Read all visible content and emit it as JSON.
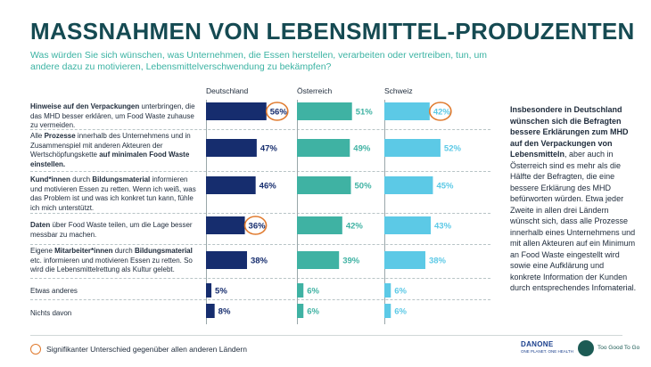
{
  "header": {
    "title": "MASSNAHMEN VON LEBENSMITTEL-PRODUZENTEN",
    "subtitle": "Was würden Sie sich wünschen, was Unternehmen, die Essen herstellen, verarbeiten oder vertreiben, tun, um andere dazu zu motivieren, Lebensmittelverschwendung zu bekämpfen?"
  },
  "colors": {
    "deutschland": "#162d6e",
    "oesterreich": "#3fb2a3",
    "schweiz": "#5cc9e6",
    "highlight_ring": "#e07a2e",
    "title": "#154a52"
  },
  "rows": [
    {
      "segments": [
        {
          "text": "Hinweise auf den Verpackungen",
          "bold": true
        },
        {
          "text": " unterbringen, die das MHD besser erklären, um Food Waste zuhause zu vermeiden.",
          "bold": false
        }
      ]
    },
    {
      "segments": [
        {
          "text": "Alle ",
          "bold": false
        },
        {
          "text": "Prozesse",
          "bold": true
        },
        {
          "text": " innerhalb des Unternehmens und in Zusammenspiel mit anderen Akteuren der Wertschöpfungskette ",
          "bold": false
        },
        {
          "text": "auf minimalen Food Waste einstellen.",
          "bold": true
        }
      ]
    },
    {
      "segments": [
        {
          "text": "Kund*innen",
          "bold": true
        },
        {
          "text": " durch ",
          "bold": false
        },
        {
          "text": "Bildungsmaterial",
          "bold": true
        },
        {
          "text": " informieren und motivieren Essen zu retten. Wenn ich weiß, was das Problem ist und was ich konkret tun kann, fühle ich mich unterstützt.",
          "bold": false
        }
      ]
    },
    {
      "segments": [
        {
          "text": "Daten",
          "bold": true
        },
        {
          "text": " über Food Waste teilen, um die Lage besser messbar zu machen.",
          "bold": false
        }
      ]
    },
    {
      "segments": [
        {
          "text": "Eigene ",
          "bold": false
        },
        {
          "text": "Mitarbeiter*innen",
          "bold": true
        },
        {
          "text": " durch ",
          "bold": false
        },
        {
          "text": "Bildungsmaterial",
          "bold": true
        },
        {
          "text": " etc. informieren und motivieren Essen zu retten. So wird die Lebensmittelrettung als Kultur gelebt.",
          "bold": false
        }
      ]
    },
    {
      "segments": [
        {
          "text": "Etwas anderes",
          "bold": false
        }
      ]
    },
    {
      "segments": [
        {
          "text": "Nichts davon",
          "bold": false
        }
      ]
    }
  ],
  "chart_data": {
    "type": "bar",
    "orientation": "horizontal",
    "unit": "%",
    "xlim": [
      0,
      100
    ],
    "countries": [
      "Deutschland",
      "Österreich",
      "Schweiz"
    ],
    "categories": [
      "Hinweise auf den Verpackungen unterbringen, die das MHD besser erklären, um Food Waste zuhause zu vermeiden.",
      "Alle Prozesse innerhalb des Unternehmens und in Zusammenspiel mit anderen Akteuren der Wertschöpfungskette auf minimalen Food Waste einstellen.",
      "Kund*innen durch Bildungsmaterial informieren und motivieren Essen zu retten. Wenn ich weiß, was das Problem ist und was ich konkret tun kann, fühle ich mich unterstützt.",
      "Daten über Food Waste teilen, um die Lage besser messbar zu machen.",
      "Eigene Mitarbeiter*innen durch Bildungsmaterial etc. informieren und motivieren Essen zu retten. So wird die Lebensmittelrettung als Kultur gelebt.",
      "Etwas anderes",
      "Nichts davon"
    ],
    "series": [
      {
        "name": "Deutschland",
        "values": [
          56,
          47,
          46,
          36,
          38,
          5,
          8
        ],
        "highlighted": [
          true,
          false,
          false,
          true,
          false,
          false,
          false
        ]
      },
      {
        "name": "Österreich",
        "values": [
          51,
          49,
          50,
          42,
          39,
          6,
          6
        ],
        "highlighted": [
          false,
          false,
          false,
          false,
          false,
          false,
          false
        ]
      },
      {
        "name": "Schweiz",
        "values": [
          42,
          52,
          45,
          43,
          38,
          6,
          6
        ],
        "highlighted": [
          true,
          false,
          false,
          false,
          false,
          false,
          false
        ]
      }
    ]
  },
  "sidebar": {
    "text_bold": "Insbesondere in Deutschland wünschen sich die Befragten bessere Erklärungen zum MHD auf den Verpackungen von Lebensmitteln",
    "text_regular": ", aber auch in Österreich sind es mehr als die Hälfte der Befragten, die eine bessere Erklärung des MHD befürworten würden. Etwa jeder Zweite in allen drei Ländern wünscht sich, dass alle Prozesse innerhalb eines Unternehmens und mit allen Akteuren auf ein Minimum an Food Waste eingestellt wird sowie eine Aufklärung und konkrete Information der Kunden durch entsprechendes Infomaterial."
  },
  "legend": {
    "text": "Signifikanter Unterschied gegenüber allen anderen Ländern"
  },
  "logos": {
    "danone_mark": "DANONE",
    "danone_sub": "ONE PLANET. ONE HEALTH",
    "tgtg_name": "Too Good To Go"
  }
}
